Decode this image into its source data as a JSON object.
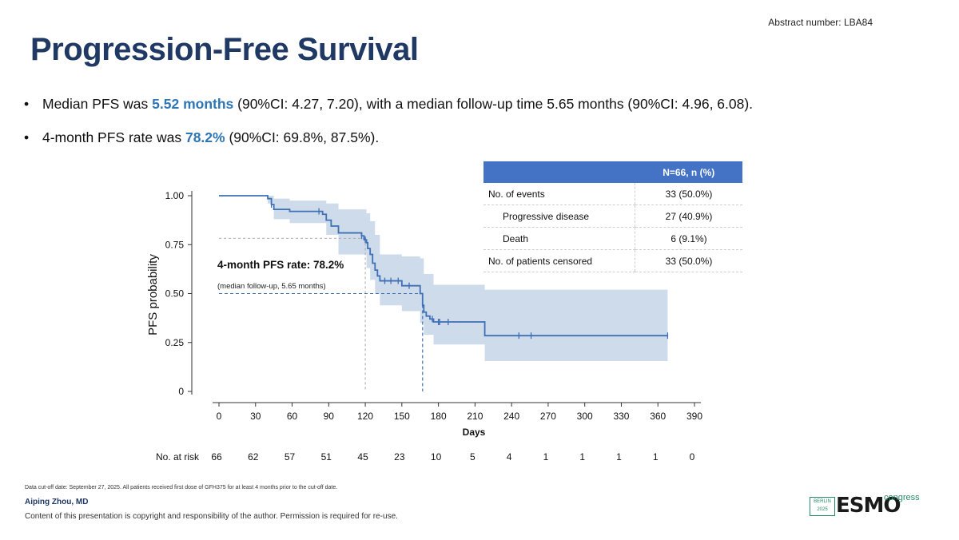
{
  "header": {
    "abstract_number": "Abstract number: LBA84",
    "title": "Progression-Free Survival"
  },
  "bullets": [
    {
      "pre": "Median PFS was ",
      "highlight": "5.52 months",
      "post": " (90%CI: 4.27, 7.20), with a median follow-up time 5.65 months (90%CI: 4.96, 6.08)."
    },
    {
      "pre": "4-month PFS rate was ",
      "highlight": "78.2%",
      "post": " (90%CI: 69.8%, 87.5%)."
    }
  ],
  "stats_table": {
    "header": "N=66, n (%)",
    "rows": [
      {
        "label": "No. of events",
        "value": "33 (50.0%)"
      },
      {
        "label": "Progressive disease",
        "value": "27 (40.9%)"
      },
      {
        "label": "Death",
        "value": "6 (9.1%)"
      },
      {
        "label": "No. of patients censored",
        "value": "33 (50.0%)"
      }
    ]
  },
  "chart_data": {
    "type": "line",
    "title": "",
    "xlabel": "Days",
    "ylabel": "PFS probability",
    "xlim": [
      0,
      390
    ],
    "ylim": [
      0,
      1
    ],
    "x_ticks": [
      0,
      30,
      60,
      90,
      120,
      150,
      180,
      210,
      240,
      270,
      300,
      330,
      360,
      390
    ],
    "y_tick_labels": [
      "0",
      "0.25",
      "0.50",
      "0.75",
      "1.00"
    ],
    "y_ticks": [
      0,
      0.25,
      0.5,
      0.75,
      1.0
    ],
    "series": [
      {
        "name": "PFS",
        "color": "#3f6fb5",
        "band_color": "#c5d5e8",
        "steps": [
          [
            0,
            1.0
          ],
          [
            40,
            0.985
          ],
          [
            43,
            0.955
          ],
          [
            45,
            0.93
          ],
          [
            58,
            0.92
          ],
          [
            83,
            0.92
          ],
          [
            85,
            0.905
          ],
          [
            88,
            0.875
          ],
          [
            92,
            0.845
          ],
          [
            98,
            0.81
          ],
          [
            115,
            0.81
          ],
          [
            117,
            0.795
          ],
          [
            119,
            0.775
          ],
          [
            121,
            0.76
          ],
          [
            122,
            0.73
          ],
          [
            124,
            0.7
          ],
          [
            126,
            0.655
          ],
          [
            128,
            0.62
          ],
          [
            130,
            0.59
          ],
          [
            132,
            0.565
          ],
          [
            148,
            0.565
          ],
          [
            150,
            0.54
          ],
          [
            160,
            0.54
          ],
          [
            165,
            0.5
          ],
          [
            167,
            0.44
          ],
          [
            168,
            0.405
          ],
          [
            170,
            0.385
          ],
          [
            173,
            0.37
          ],
          [
            176,
            0.355
          ],
          [
            216,
            0.355
          ],
          [
            218,
            0.285
          ],
          [
            368,
            0.285
          ]
        ],
        "upper": [
          [
            0,
            1.0
          ],
          [
            40,
            1.0
          ],
          [
            45,
            0.985
          ],
          [
            58,
            0.975
          ],
          [
            88,
            0.96
          ],
          [
            98,
            0.93
          ],
          [
            115,
            0.93
          ],
          [
            121,
            0.91
          ],
          [
            124,
            0.87
          ],
          [
            128,
            0.8
          ],
          [
            132,
            0.7
          ],
          [
            150,
            0.69
          ],
          [
            165,
            0.68
          ],
          [
            168,
            0.6
          ],
          [
            176,
            0.545
          ],
          [
            216,
            0.545
          ],
          [
            218,
            0.52
          ],
          [
            368,
            0.52
          ]
        ],
        "lower": [
          [
            0,
            1.0
          ],
          [
            40,
            0.96
          ],
          [
            45,
            0.88
          ],
          [
            58,
            0.86
          ],
          [
            88,
            0.8
          ],
          [
            98,
            0.7
          ],
          [
            115,
            0.7
          ],
          [
            121,
            0.63
          ],
          [
            124,
            0.57
          ],
          [
            128,
            0.5
          ],
          [
            132,
            0.44
          ],
          [
            150,
            0.41
          ],
          [
            165,
            0.35
          ],
          [
            168,
            0.29
          ],
          [
            176,
            0.24
          ],
          [
            216,
            0.24
          ],
          [
            218,
            0.155
          ],
          [
            368,
            0.155
          ]
        ],
        "censored": [
          43,
          82,
          117,
          120,
          136,
          141,
          147,
          156,
          175,
          180,
          181,
          188,
          246,
          256,
          368
        ]
      }
    ],
    "annotation": {
      "label": "4-month PFS rate: 78.2%",
      "sublabel": "(median follow-up, 5.65 months)",
      "rate_x": 120,
      "rate_y": 0.782,
      "median_x": 167,
      "median_y": 0.5
    },
    "risk_table": {
      "label": "No. at risk",
      "values": [
        66,
        62,
        57,
        51,
        45,
        23,
        10,
        5,
        4,
        1,
        1,
        1,
        1,
        0
      ]
    }
  },
  "footer": {
    "note": "Data cut-off date: September 27, 2025. All patients received first dose of GFH375 for at least 4 months prior to the cut-off date.",
    "author": "Aiping Zhou, MD",
    "copyright": "Content of this presentation is copyright and responsibility of the author. Permission is required for re-use.",
    "logo_city": "BERLIN 2025",
    "logo_text": "ESMO",
    "logo_congress": "congress"
  }
}
